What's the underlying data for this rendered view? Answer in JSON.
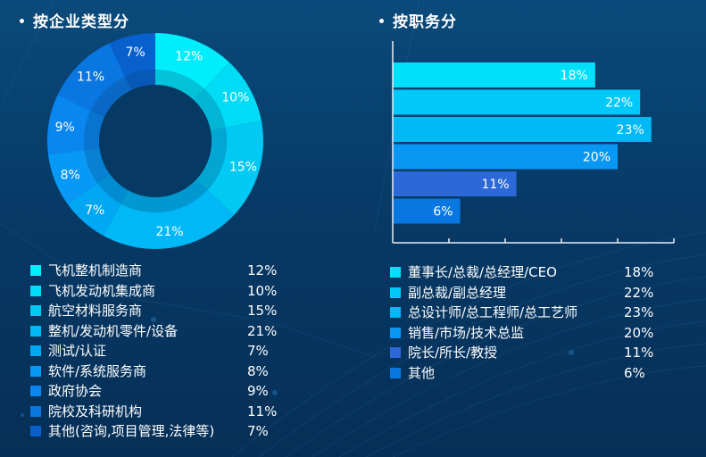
{
  "chart_data": [
    {
      "type": "pie",
      "variant": "donut",
      "title": "按企业类型分",
      "categories": [
        "飞机整机制造商",
        "飞机发动机集成商",
        "航空材料服务商",
        "整机/发动机零件/设备",
        "测试/认证",
        "软件/系统服务商",
        "政府协会",
        "院校及科研机构",
        "其他(咨询,项目管理,法律等)"
      ],
      "values": [
        12,
        10,
        15,
        21,
        7,
        8,
        9,
        11,
        7
      ],
      "labels": [
        "12%",
        "10%",
        "15%",
        "21%",
        "7%",
        "8%",
        "9%",
        "11%",
        "7%"
      ],
      "colors": [
        "#00eefc",
        "#00dcf6",
        "#00c9f4",
        "#00b8f6",
        "#00a8f4",
        "#0898f6",
        "#0a86f0",
        "#0a76e2",
        "#0760cc"
      ],
      "legend": "bottom"
    },
    {
      "type": "bar",
      "orientation": "horizontal",
      "title": "按职务分",
      "categories": [
        "董事长/总裁/总经理/CEO",
        "副总裁/副总经理",
        "总设计师/总工程师/总工艺师",
        "销售/市场/技术总监",
        "院长/所长/教授",
        "其他"
      ],
      "values": [
        18,
        22,
        23,
        20,
        11,
        6
      ],
      "labels": [
        "18%",
        "22%",
        "23%",
        "20%",
        "11%",
        "6%"
      ],
      "colors": [
        "#00e0fa",
        "#00c8f8",
        "#00b8f6",
        "#0898f4",
        "#2b68d8",
        "#0878e0"
      ],
      "xlim": [
        0,
        25
      ],
      "x_ticks": 5,
      "grid": false,
      "legend": "bottom"
    }
  ],
  "legend1": {
    "items": [
      {
        "label": "飞机整机制造商",
        "value": "12%"
      },
      {
        "label": "飞机发动机集成商",
        "value": "10%"
      },
      {
        "label": "航空材料服务商",
        "value": "15%"
      },
      {
        "label": "整机/发动机零件/设备",
        "value": "21%"
      },
      {
        "label": "测试/认证",
        "value": "7%"
      },
      {
        "label": "软件/系统服务商",
        "value": "8%"
      },
      {
        "label": "政府协会",
        "value": "9%"
      },
      {
        "label": "院校及科研机构",
        "value": "11%"
      },
      {
        "label": "其他(咨询,项目管理,法律等)",
        "value": "7%"
      }
    ]
  },
  "legend2": {
    "items": [
      {
        "label": "董事长/总裁/总经理/CEO",
        "value": "18%"
      },
      {
        "label": "副总裁/副总经理",
        "value": "22%"
      },
      {
        "label": "总设计师/总工程师/总工艺师",
        "value": "23%"
      },
      {
        "label": "销售/市场/技术总监",
        "value": "20%"
      },
      {
        "label": "院长/所长/教授",
        "value": "11%"
      },
      {
        "label": "其他",
        "value": "6%"
      }
    ]
  }
}
